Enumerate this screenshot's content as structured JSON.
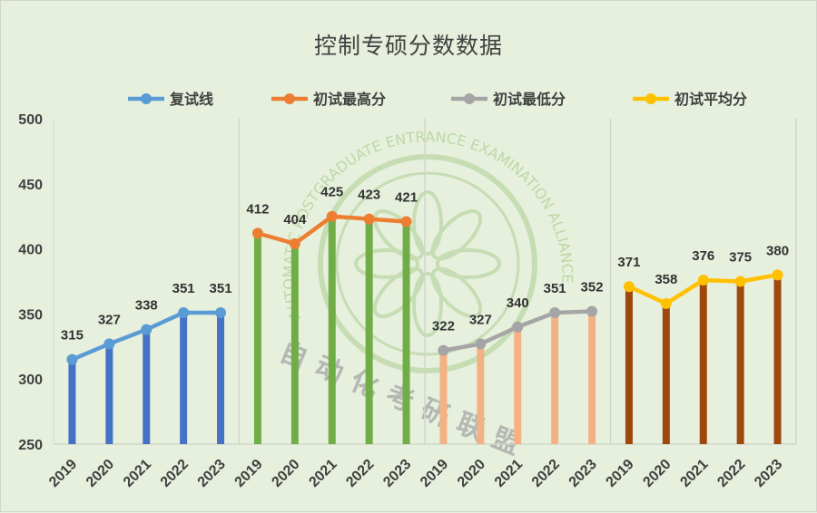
{
  "title": "控制专硕分数数据",
  "legend": [
    {
      "label": "复试线",
      "color": "#5b9bd5"
    },
    {
      "label": "初试最高分",
      "color": "#ed7d31"
    },
    {
      "label": "初试最低分",
      "color": "#a5a5a5"
    },
    {
      "label": "初试平均分",
      "color": "#ffc000"
    }
  ],
  "watermark": {
    "ring_text": "AUTOMATIC POSTGRADUATE ENTRANCE EXAMINATION ALLIANCE",
    "cn_text": "自动化考研联盟"
  },
  "chart_data": {
    "type": "line",
    "title": "控制专硕分数数据",
    "xlabel": "",
    "ylabel": "",
    "ylim": [
      250,
      500
    ],
    "yticks": [
      250,
      300,
      350,
      400,
      450,
      500
    ],
    "grid": false,
    "legend_position": "top",
    "categories": [
      "2019",
      "2020",
      "2021",
      "2022",
      "2023"
    ],
    "series": [
      {
        "name": "复试线",
        "line_color": "#5b9bd5",
        "bar_color": "#4472c4",
        "values": [
          315,
          327,
          338,
          351,
          351
        ]
      },
      {
        "name": "初试最高分",
        "line_color": "#ed7d31",
        "bar_color": "#70ad47",
        "values": [
          412,
          404,
          425,
          423,
          421
        ]
      },
      {
        "name": "初试最低分",
        "line_color": "#a5a5a5",
        "bar_color": "#f4b183",
        "values": [
          322,
          327,
          340,
          351,
          352
        ]
      },
      {
        "name": "初试平均分",
        "line_color": "#ffc000",
        "bar_color": "#9e480e",
        "values": [
          371,
          358,
          376,
          375,
          380
        ]
      }
    ]
  }
}
